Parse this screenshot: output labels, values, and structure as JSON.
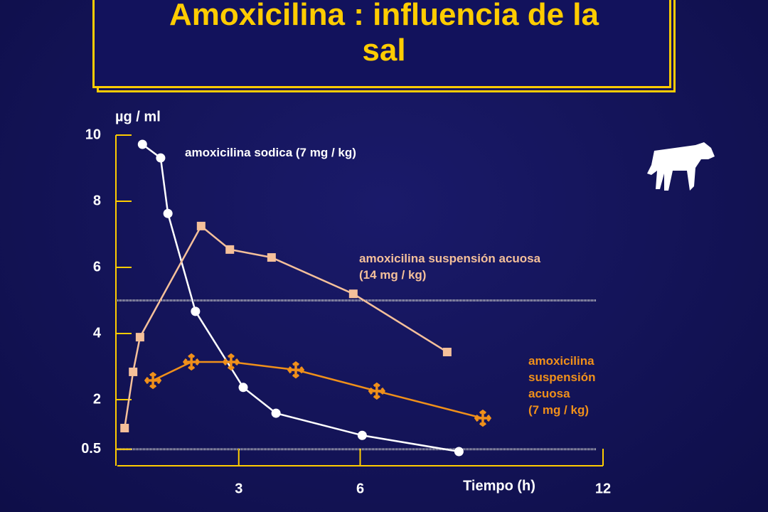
{
  "chart_data": {
    "type": "line",
    "title": "Amoxicilina : influencia de la\nsal",
    "ylabel": "µg / ml",
    "xlabel": "Tiempo (h)",
    "xlim": [
      0,
      12
    ],
    "ylim": [
      0,
      10
    ],
    "xticks": [
      3,
      6,
      12
    ],
    "yticks": [
      10,
      8,
      6,
      4,
      2,
      0.5
    ],
    "reference_lines": [
      5,
      0.5
    ],
    "series": [
      {
        "name": "amoxicilina sodica (7 mg / kg)",
        "color": "#ffffff",
        "marker": "circle",
        "x": [
          0.62,
          1.07,
          1.25,
          1.93,
          3.11,
          3.92,
          6.05,
          8.44
        ],
        "values": [
          9.72,
          9.31,
          7.63,
          4.67,
          2.37,
          1.59,
          0.92,
          0.43
        ]
      },
      {
        "name": "amoxicilina  suspensión acuosa\n (14 mg / kg)",
        "color": "#f5c09a",
        "marker": "square",
        "x": [
          0.18,
          0.39,
          0.56,
          2.07,
          2.78,
          3.81,
          5.83,
          8.15
        ],
        "values": [
          1.14,
          2.84,
          3.89,
          7.25,
          6.54,
          6.3,
          5.2,
          3.44
        ]
      },
      {
        "name": "amoxicilina\nsuspensión\nacuosa\n (7 mg / kg)",
        "color": "#f0901a",
        "marker": "cross",
        "x": [
          0.88,
          1.83,
          2.81,
          4.41,
          6.41,
          9.03
        ],
        "values": [
          2.58,
          3.14,
          3.14,
          2.9,
          2.26,
          1.44
        ]
      }
    ]
  }
}
